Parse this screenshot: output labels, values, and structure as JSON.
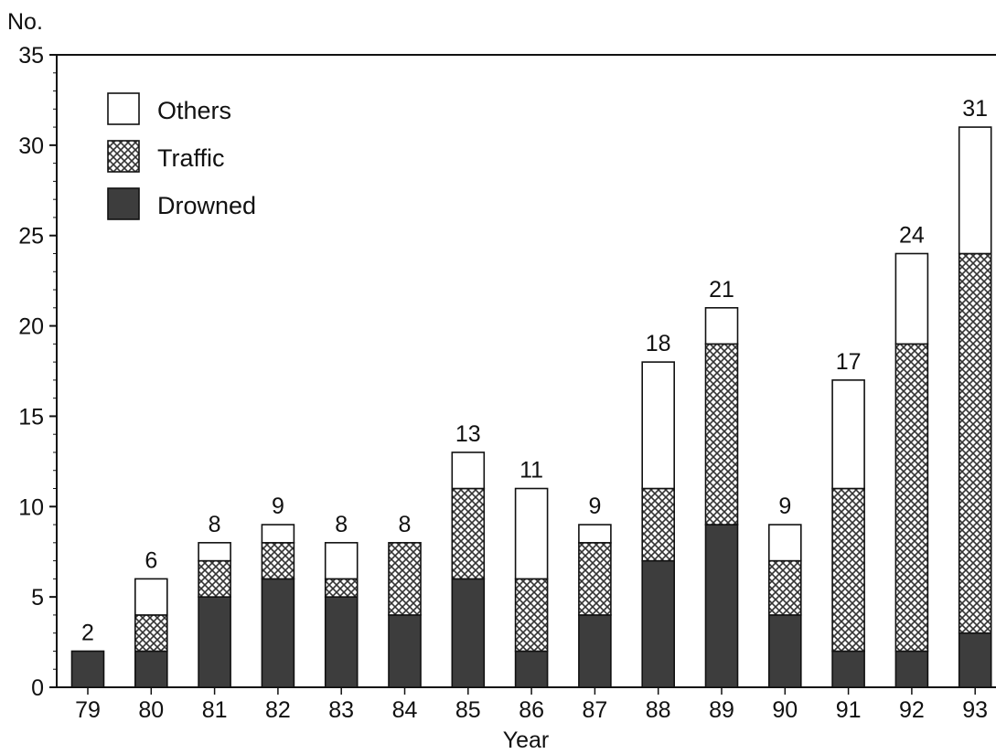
{
  "chart_data": {
    "type": "bar",
    "stacked": true,
    "xlabel": "Year",
    "ylabel": "No.",
    "ylim": [
      0,
      35
    ],
    "yticks": [
      0,
      5,
      10,
      15,
      20,
      25,
      30,
      35
    ],
    "grid": false,
    "legend_position": "top-left",
    "categories": [
      "79",
      "80",
      "81",
      "82",
      "83",
      "84",
      "85",
      "86",
      "87",
      "88",
      "89",
      "90",
      "91",
      "92",
      "93"
    ],
    "series": [
      {
        "name": "Drowned",
        "pattern": "solid",
        "color": "#3d3d3d",
        "values": [
          2,
          2,
          5,
          6,
          5,
          4,
          6,
          2,
          4,
          7,
          9,
          4,
          2,
          2,
          3
        ]
      },
      {
        "name": "Traffic",
        "pattern": "crosshatch",
        "color": "#ffffff",
        "values": [
          0,
          2,
          2,
          2,
          1,
          4,
          5,
          4,
          4,
          4,
          10,
          3,
          9,
          17,
          21
        ]
      },
      {
        "name": "Others",
        "pattern": "empty",
        "color": "#ffffff",
        "values": [
          0,
          2,
          1,
          1,
          2,
          0,
          2,
          5,
          1,
          7,
          2,
          2,
          6,
          5,
          7
        ]
      }
    ],
    "totals": [
      2,
      6,
      8,
      9,
      8,
      8,
      13,
      11,
      9,
      18,
      21,
      9,
      17,
      24,
      31
    ],
    "legend_order": [
      "Others",
      "Traffic",
      "Drowned"
    ]
  }
}
